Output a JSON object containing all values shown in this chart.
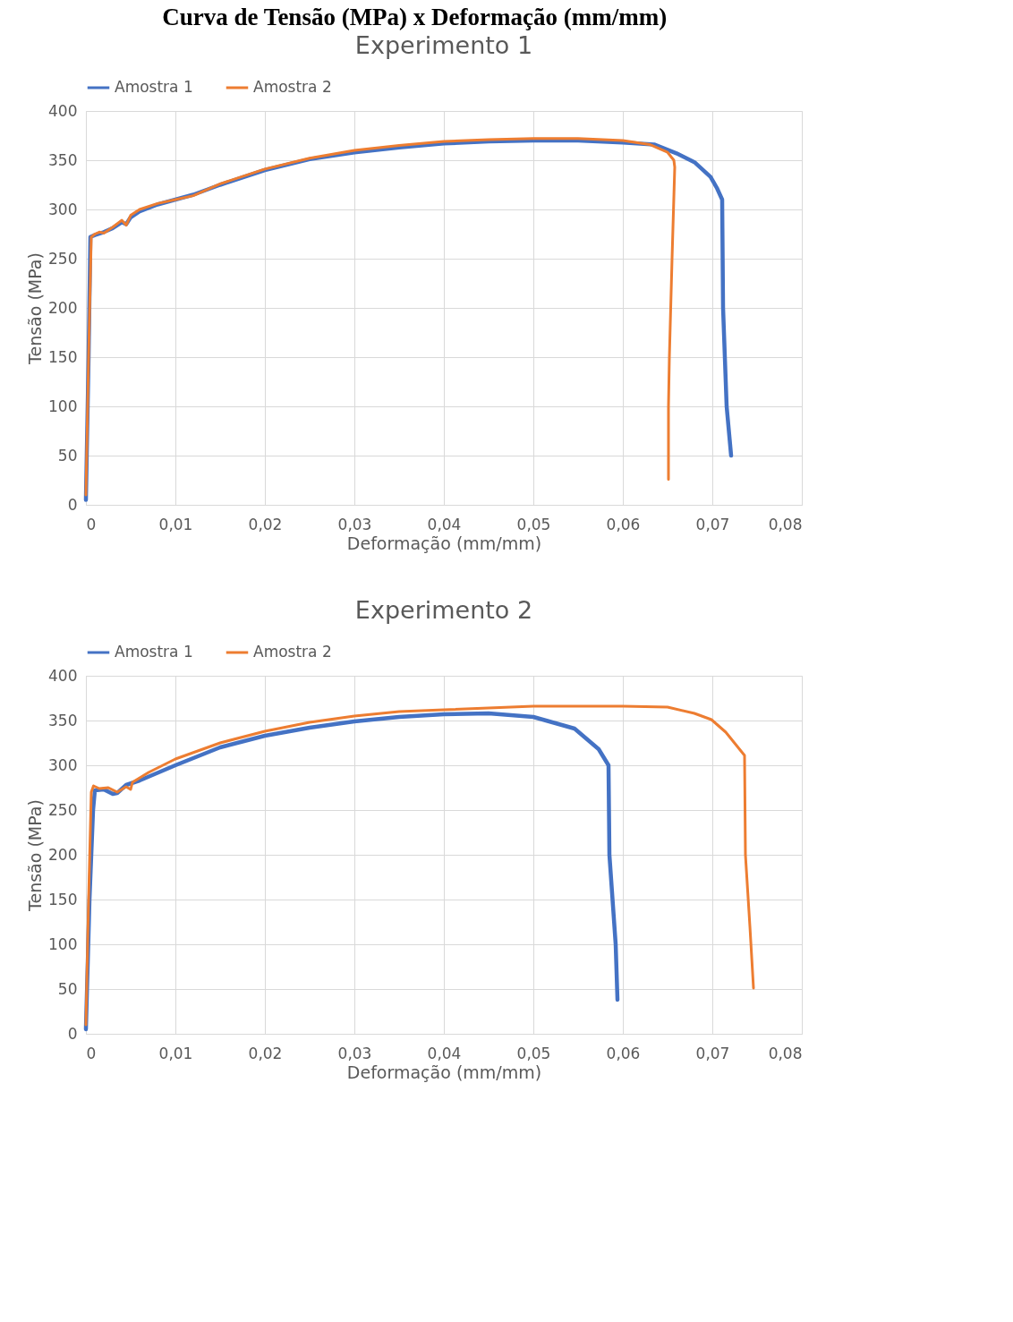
{
  "chart_data": [
    {
      "type": "line",
      "title": "Experimento 1",
      "xlabel": "Deformação (mm/mm)",
      "ylabel": "Tensão (MPa)",
      "annotations": [
        "Curva de Tensão (MPa) x Deformação (mm/mm)"
      ],
      "xlim": [
        0,
        0.08
      ],
      "xticks": [
        0,
        {
          "value": 0.01,
          "label": "0,01"
        },
        {
          "value": 0.02,
          "label": "0,02"
        },
        {
          "value": 0.03,
          "label": "0,03"
        },
        {
          "value": 0.04,
          "label": "0,04"
        },
        {
          "value": 0.05,
          "label": "0,05"
        },
        {
          "value": 0.06,
          "label": "0,06"
        },
        {
          "value": 0.07,
          "label": "0,07"
        },
        {
          "value": 0.08,
          "label": "0,08"
        }
      ],
      "ylim": [
        0,
        400
      ],
      "yticks": [
        0,
        50,
        100,
        150,
        200,
        250,
        300,
        350,
        400
      ],
      "grid": true,
      "legend": "top",
      "line_style": "solid",
      "marker": "none",
      "series": [
        {
          "name": "Amostra 1",
          "color": "#4472c4",
          "x": [
            0,
            0.0003,
            0.0005,
            0.001,
            0.002,
            0.003,
            0.004,
            0.0045,
            0.005,
            0.006,
            0.008,
            0.01,
            0.012,
            0.015,
            0.02,
            0.025,
            0.03,
            0.035,
            0.04,
            0.045,
            0.05,
            0.055,
            0.06,
            0.0635,
            0.066,
            0.068,
            0.0698,
            0.0705,
            0.0711,
            0.0712,
            0.0716,
            0.0721
          ],
          "values": [
            5,
            150,
            272,
            274,
            277,
            281,
            287,
            285,
            292,
            298,
            305,
            310,
            315,
            325,
            340,
            351,
            358,
            363,
            367,
            369,
            370,
            370,
            368,
            366,
            357,
            348,
            333,
            322,
            310,
            200,
            100,
            50
          ]
        },
        {
          "name": "Amostra 2",
          "color": "#ed7d31",
          "x": [
            0,
            0.0003,
            0.0006,
            0.001,
            0.0015,
            0.002,
            0.003,
            0.004,
            0.0045,
            0.005,
            0.006,
            0.008,
            0.01,
            0.012,
            0.015,
            0.02,
            0.025,
            0.03,
            0.035,
            0.04,
            0.045,
            0.05,
            0.055,
            0.06,
            0.063,
            0.065,
            0.0657,
            0.0658,
            0.0655,
            0.0652,
            0.0651,
            0.0651
          ],
          "values": [
            10,
            150,
            272,
            275,
            277,
            276,
            282,
            289,
            284,
            294,
            300,
            306,
            310,
            314,
            326,
            341,
            352,
            360,
            365,
            369,
            371,
            372,
            372,
            370,
            366,
            358,
            350,
            343,
            250,
            150,
            100,
            26
          ]
        }
      ]
    },
    {
      "type": "line",
      "title": "Experimento 2",
      "xlabel": "Deformação (mm/mm)",
      "ylabel": "Tensão (MPa)",
      "xlim": [
        0,
        0.08
      ],
      "xticks": [
        0,
        {
          "value": 0.01,
          "label": "0,01"
        },
        {
          "value": 0.02,
          "label": "0,02"
        },
        {
          "value": 0.03,
          "label": "0,03"
        },
        {
          "value": 0.04,
          "label": "0,04"
        },
        {
          "value": 0.05,
          "label": "0,05"
        },
        {
          "value": 0.06,
          "label": "0,06"
        },
        {
          "value": 0.07,
          "label": "0,07"
        },
        {
          "value": 0.08,
          "label": "0,08"
        }
      ],
      "ylim": [
        0,
        400
      ],
      "yticks": [
        0,
        50,
        100,
        150,
        200,
        250,
        300,
        350,
        400
      ],
      "grid": true,
      "legend": "top",
      "line_style": "solid",
      "marker": "none",
      "series": [
        {
          "name": "Amostra 1",
          "color": "#4472c4",
          "x": [
            0,
            0.0004,
            0.0008,
            0.001,
            0.002,
            0.003,
            0.0035,
            0.0045,
            0.006,
            0.01,
            0.015,
            0.02,
            0.025,
            0.03,
            0.035,
            0.04,
            0.045,
            0.05,
            0.0546,
            0.0573,
            0.0584,
            0.0585,
            0.0592,
            0.0594
          ],
          "values": [
            5,
            150,
            250,
            272,
            273,
            268,
            269,
            278,
            283,
            300,
            320,
            333,
            342,
            349,
            354,
            357,
            358,
            354,
            341,
            318,
            300,
            200,
            100,
            38
          ]
        },
        {
          "name": "Amostra 2",
          "color": "#ed7d31",
          "x": [
            0,
            0.0003,
            0.0006,
            0.00085,
            0.0015,
            0.0025,
            0.0035,
            0.0045,
            0.005,
            0.0052,
            0.007,
            0.01,
            0.015,
            0.02,
            0.025,
            0.03,
            0.035,
            0.04,
            0.05,
            0.06,
            0.065,
            0.068,
            0.0699,
            0.0715,
            0.0736,
            0.0737,
            0.0742,
            0.0746
          ],
          "values": [
            10,
            150,
            270,
            277,
            274,
            275,
            270,
            276,
            273,
            281,
            292,
            307,
            325,
            338,
            348,
            355,
            360,
            362,
            366,
            366,
            365,
            358,
            351,
            337,
            311,
            200,
            120,
            51
          ]
        }
      ]
    }
  ]
}
